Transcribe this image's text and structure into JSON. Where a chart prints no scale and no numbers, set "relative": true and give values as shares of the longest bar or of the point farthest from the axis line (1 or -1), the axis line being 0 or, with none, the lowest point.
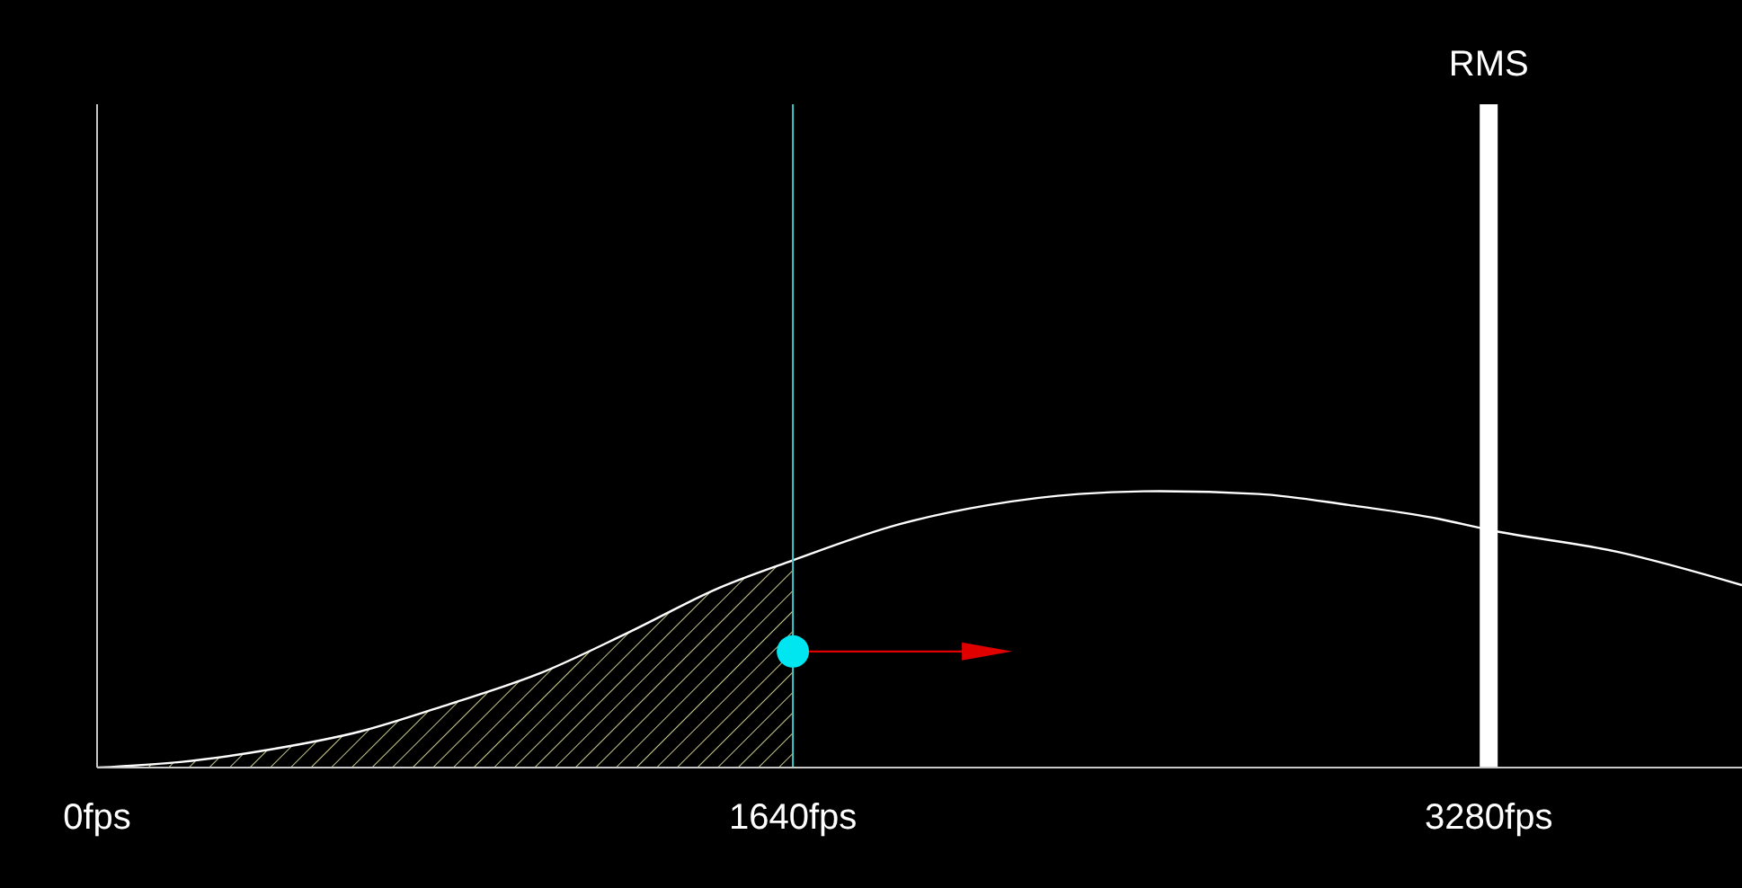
{
  "chart_data": {
    "type": "line",
    "relative": true,
    "xlim": [
      0,
      3877
    ],
    "xticks": [
      {
        "value": 0,
        "label": "0fps"
      },
      {
        "value": 1640,
        "label": "1640fps"
      },
      {
        "value": 3280,
        "label": "3280fps"
      }
    ],
    "tick_labels": "x",
    "marker": "none",
    "line_style": "solid",
    "series": [
      {
        "color": "#ffffff",
        "x": [
          0,
          195,
          407,
          619,
          831,
          1042,
          1254,
          1466,
          1640,
          1890,
          2102,
          2314,
          2505,
          2738,
          2950,
          3162,
          3280,
          3585,
          3877
        ],
        "values": [
          0,
          0.02,
          0.065,
          0.13,
          0.23,
          0.34,
          0.49,
          0.65,
          0.75,
          0.88,
          0.95,
          0.99,
          1,
          0.99,
          0.95,
          0.9,
          0.86,
          0.78,
          0.66
        ]
      },
      {
        "type": "area",
        "color": "#c8c88c",
        "x": [
          0,
          195,
          407,
          619,
          831,
          1042,
          1254,
          1466,
          1640
        ],
        "values": [
          0,
          0.02,
          0.065,
          0.13,
          0.23,
          0.34,
          0.49,
          0.65,
          0.75
        ]
      }
    ],
    "ref_lines": [
      {
        "axis": "x",
        "value": 1640,
        "label": null,
        "color": "#40c8c8"
      },
      {
        "axis": "x",
        "value": 3280,
        "label": "RMS",
        "color": "#ffffff"
      }
    ]
  }
}
